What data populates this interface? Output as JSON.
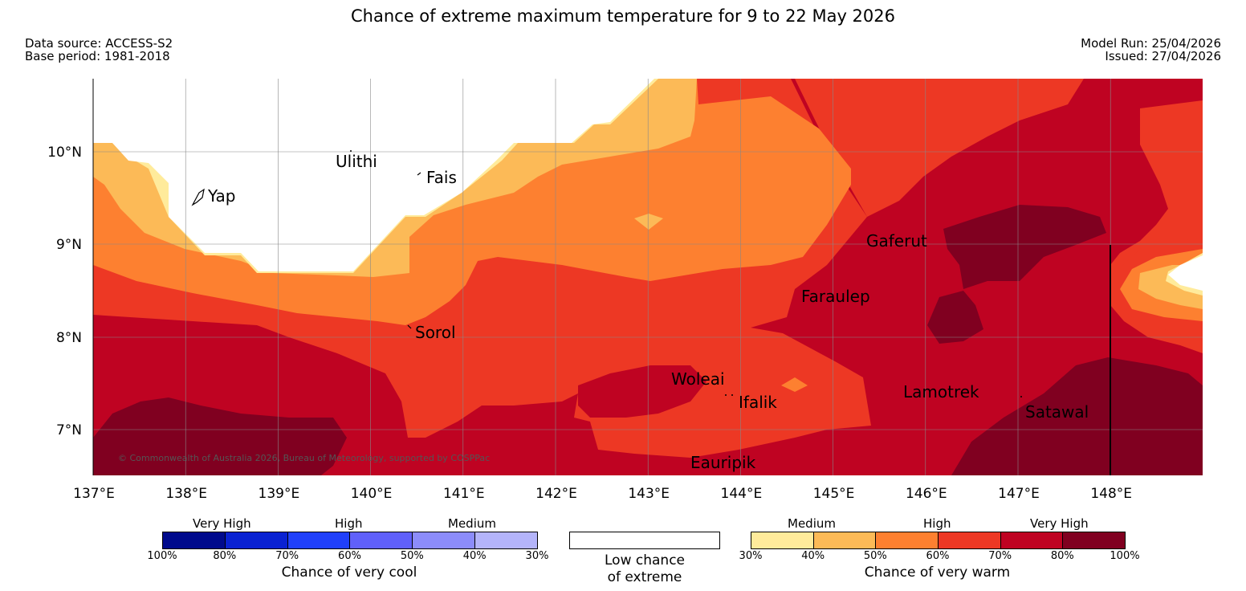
{
  "header": {
    "title": "Chance of extreme maximum temperature for 9 to 22 May 2026",
    "data_source": "Data source: ACCESS-S2",
    "base_period": "Base period: 1981-2018",
    "model_run": "Model Run: 25/04/2026",
    "issued": "Issued: 27/04/2026"
  },
  "map": {
    "lon_labels": [
      "137°E",
      "138°E",
      "139°E",
      "140°E",
      "141°E",
      "142°E",
      "143°E",
      "144°E",
      "145°E",
      "146°E",
      "147°E",
      "148°E"
    ],
    "lat_labels": [
      "10°N",
      "9°N",
      "8°N",
      "7°N"
    ],
    "places": {
      "yap": "Yap",
      "ulithi": "Ulithi",
      "fais": "Fais",
      "sorol": "Sorol",
      "gaferut": "Gaferut",
      "faraulep": "Faraulep",
      "woleai": "Woleai",
      "ifalik": "Ifalik",
      "lamotrek": "Lamotrek",
      "satawal": "Satawal",
      "eauripik": "Eauripik"
    },
    "copyright": "© Commonwealth of Australia 2026, Bureau of Meteorology, supported by COSPPac"
  },
  "legend": {
    "cool": {
      "heads": {
        "very_high": "Very High",
        "high": "High",
        "medium": "Medium"
      },
      "pcts": [
        "100%",
        "80%",
        "70%",
        "60%",
        "50%",
        "40%",
        "30%"
      ],
      "colors": [
        "#000a8c",
        "#0a22d2",
        "#2040fa",
        "#6060fa",
        "#8c8cfa",
        "#b4b4fa"
      ],
      "caption": "Chance of very cool"
    },
    "low": {
      "line1": "Low chance",
      "line2": "of extreme",
      "color": "#ffffff"
    },
    "warm": {
      "heads": {
        "medium": "Medium",
        "high": "High",
        "very_high": "Very High"
      },
      "pcts": [
        "30%",
        "40%",
        "50%",
        "60%",
        "70%",
        "80%",
        "100%"
      ],
      "colors": [
        "#ffeb9b",
        "#fcba57",
        "#fd8030",
        "#ed3824",
        "#bf0322",
        "#800020"
      ],
      "caption": "Chance of very warm"
    }
  }
}
